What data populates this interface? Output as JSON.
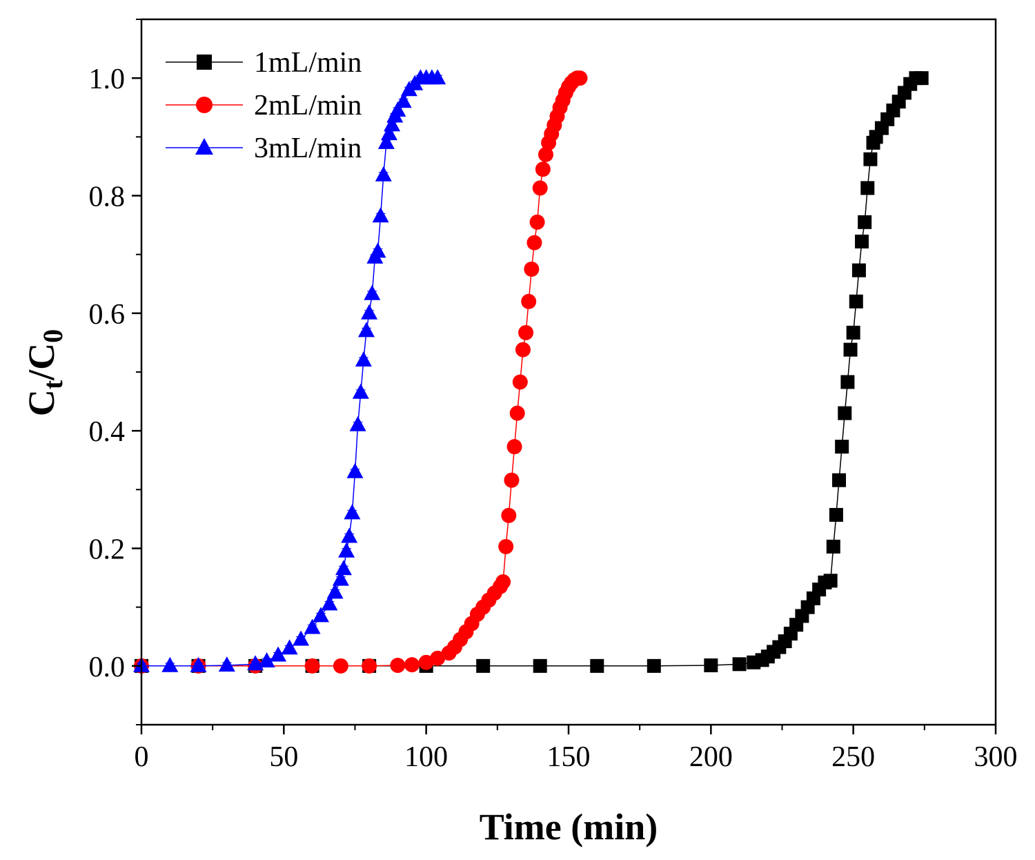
{
  "chart_data": {
    "type": "scatter",
    "title": "",
    "xlabel": "Time (min)",
    "ylabel": {
      "c": "C",
      "t": "t",
      "slash": "/",
      "c0": "C",
      "zero": "0"
    },
    "xlim": [
      0,
      300
    ],
    "ylim": [
      -0.1,
      1.1
    ],
    "xticks": [
      0,
      50,
      100,
      150,
      200,
      250,
      300
    ],
    "xtick_labels": [
      "0",
      "50",
      "100",
      "150",
      "200",
      "250",
      "300"
    ],
    "yticks": [
      0.0,
      0.2,
      0.4,
      0.6,
      0.8,
      1.0
    ],
    "ytick_labels": [
      "0.0",
      "0.2",
      "0.4",
      "0.6",
      "0.8",
      "1.0"
    ],
    "grid": false,
    "legend_position": "top-left",
    "series": [
      {
        "name": "1mL/min",
        "color": "#000000",
        "marker": "square",
        "x": [
          0,
          20,
          40,
          60,
          80,
          100,
          120,
          140,
          160,
          180,
          200,
          210,
          215,
          218,
          220,
          222,
          224,
          226,
          228,
          230,
          232,
          234,
          236,
          238,
          240,
          242,
          243,
          244,
          245,
          246,
          247,
          248,
          249,
          250,
          251,
          252,
          253,
          254,
          255,
          256,
          257,
          258,
          260,
          262,
          264,
          266,
          268,
          270,
          272,
          274
        ],
        "y": [
          0,
          0,
          0,
          0,
          0,
          0,
          0,
          0,
          0,
          0,
          0.001,
          0.003,
          0.006,
          0.01,
          0.016,
          0.024,
          0.032,
          0.042,
          0.055,
          0.07,
          0.085,
          0.1,
          0.115,
          0.13,
          0.142,
          0.145,
          0.203,
          0.257,
          0.316,
          0.373,
          0.43,
          0.483,
          0.538,
          0.567,
          0.62,
          0.673,
          0.722,
          0.755,
          0.813,
          0.862,
          0.89,
          0.9,
          0.915,
          0.93,
          0.945,
          0.96,
          0.975,
          0.99,
          1.0,
          1.0
        ]
      },
      {
        "name": "2mL/min",
        "color": "#ff0000",
        "marker": "circle",
        "x": [
          0,
          20,
          40,
          60,
          70,
          80,
          90,
          95,
          100,
          104,
          108,
          110,
          112,
          114,
          116,
          118,
          120,
          122,
          124,
          126,
          127,
          128,
          129,
          130,
          131,
          132,
          133,
          134,
          135,
          136,
          137,
          138,
          139,
          140,
          141,
          142,
          143,
          144,
          145,
          146,
          147,
          148,
          149,
          150,
          151,
          152,
          153,
          154
        ],
        "y": [
          0,
          0,
          0,
          0,
          0,
          0,
          0.001,
          0.002,
          0.006,
          0.013,
          0.022,
          0.032,
          0.045,
          0.058,
          0.072,
          0.088,
          0.1,
          0.112,
          0.124,
          0.135,
          0.143,
          0.203,
          0.256,
          0.316,
          0.373,
          0.43,
          0.483,
          0.538,
          0.567,
          0.62,
          0.675,
          0.72,
          0.755,
          0.813,
          0.845,
          0.87,
          0.89,
          0.905,
          0.92,
          0.935,
          0.95,
          0.962,
          0.975,
          0.985,
          0.992,
          0.997,
          1.0,
          1.0
        ]
      },
      {
        "name": "3mL/min",
        "color": "#0000ff",
        "marker": "triangle",
        "x": [
          0,
          10,
          20,
          30,
          40,
          44,
          48,
          52,
          56,
          60,
          63,
          66,
          68,
          70,
          71,
          72,
          73,
          74,
          75,
          76,
          77,
          78,
          79,
          80,
          81,
          82,
          83,
          84,
          85,
          86,
          87,
          88,
          89,
          90,
          92,
          94,
          96,
          98,
          100,
          102,
          104
        ],
        "y": [
          0,
          0,
          0,
          0.001,
          0.003,
          0.008,
          0.018,
          0.03,
          0.045,
          0.065,
          0.085,
          0.105,
          0.125,
          0.147,
          0.165,
          0.195,
          0.22,
          0.26,
          0.33,
          0.41,
          0.465,
          0.52,
          0.57,
          0.6,
          0.633,
          0.695,
          0.705,
          0.765,
          0.835,
          0.89,
          0.905,
          0.92,
          0.935,
          0.945,
          0.96,
          0.98,
          0.99,
          1.0,
          1.0,
          1.0,
          1.0
        ]
      }
    ]
  }
}
